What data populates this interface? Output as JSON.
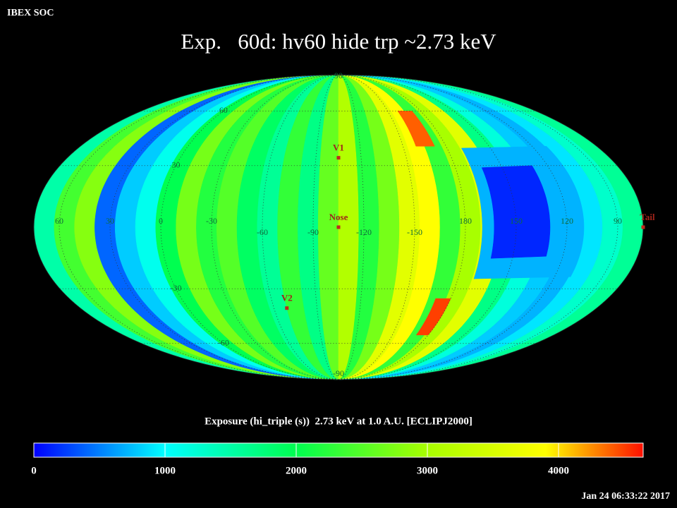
{
  "chart_data": {
    "type": "mollweide",
    "source": "IBEX SOC",
    "title": "Exp.   60d: hv60 hide trp ~2.73 keV",
    "colorbar_label": "Exposure (hi_triple (s))  2.73 keV at 1.0 A.U. [ECLIPJ2000]",
    "timestamp": "Jan 24 06:33:22 2017",
    "lon_edges": [
      75,
      63,
      51,
      39,
      27,
      15,
      3,
      -9,
      -21,
      -33,
      -45,
      -57,
      -69,
      -81,
      -93,
      -105,
      -117,
      -129,
      -141,
      -153,
      -165,
      -177,
      171,
      159,
      147,
      135,
      123,
      111,
      99,
      87,
      75
    ],
    "values": [
      1500,
      2400,
      2800,
      400,
      800,
      1100,
      2000,
      2700,
      2200,
      2500,
      1900,
      1600,
      2300,
      1700,
      2600,
      3100,
      2200,
      2700,
      3600,
      3900,
      2300,
      3000,
      3600,
      1700,
      1200,
      800,
      700,
      900,
      1300,
      1600
    ],
    "patches": [
      {
        "lon": [
          110,
          170
        ],
        "lat": [
          -25,
          40
        ],
        "value": 700
      },
      {
        "lon": [
          130,
          163
        ],
        "lat": [
          -15,
          30
        ],
        "value": 150
      },
      {
        "lon": [
          -172,
          -159
        ],
        "lat": [
          40,
          60
        ],
        "value": 4400
      },
      {
        "lon": [
          -180,
          -170
        ],
        "lat": [
          -55,
          -35
        ],
        "value": 4500
      }
    ],
    "lon_labels": [
      60,
      30,
      0,
      -30,
      -60,
      -90,
      -120,
      -150,
      180,
      150,
      120,
      90
    ],
    "lat_labels": [
      90,
      60,
      30,
      -30,
      -60,
      -90
    ],
    "markers": [
      {
        "label": "V1",
        "lon": -105,
        "lat": 34
      },
      {
        "label": "Nose",
        "lon": -105,
        "lat": 0
      },
      {
        "label": "V2",
        "lon": -69,
        "lat": -40
      },
      {
        "label": "Tail",
        "lon": 75,
        "lat": 0
      }
    ],
    "clim": [
      0,
      4645
    ],
    "cticks": [
      0,
      1000,
      2000,
      3000,
      4000
    ],
    "colorscale": [
      [
        0,
        "#0000ff"
      ],
      [
        1000,
        "#00ffff"
      ],
      [
        2000,
        "#00ff50"
      ],
      [
        3000,
        "#a8ff00"
      ],
      [
        3900,
        "#ffff00"
      ],
      [
        4645,
        "#ff1000"
      ]
    ]
  }
}
